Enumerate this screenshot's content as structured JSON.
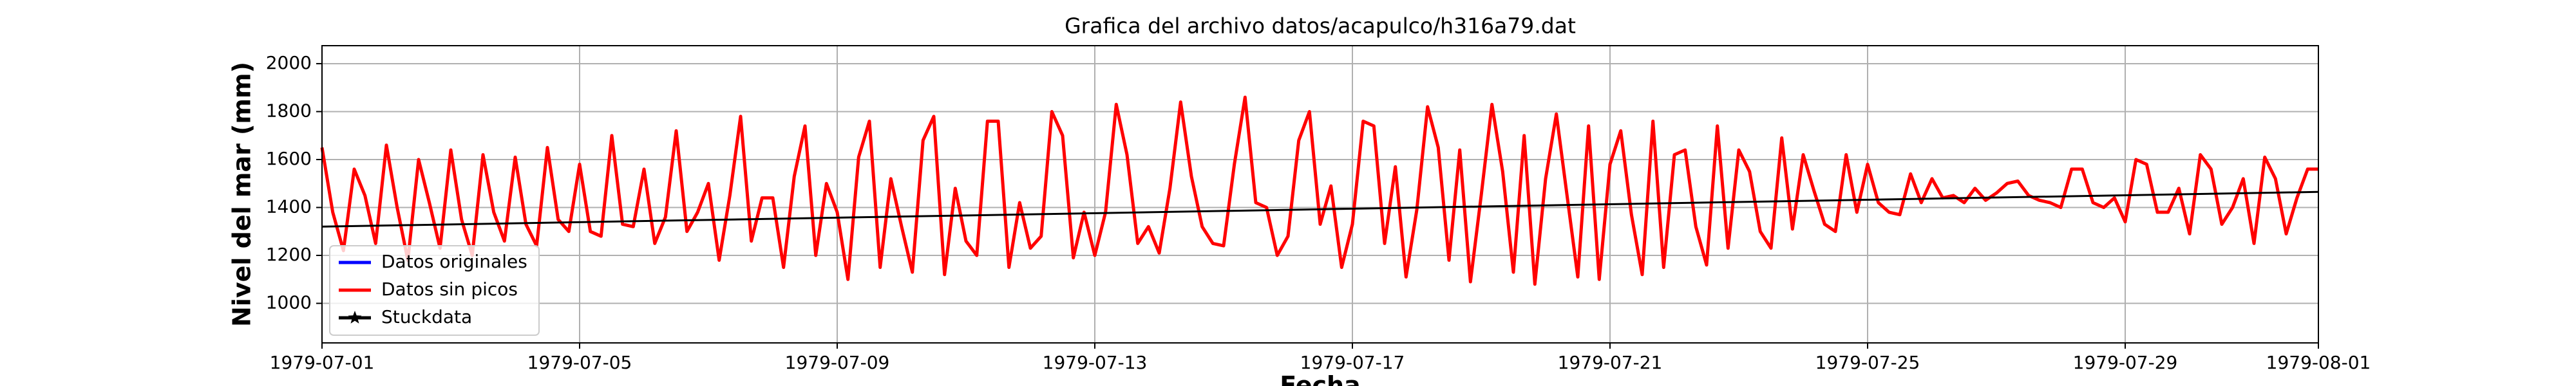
{
  "chart_data": {
    "type": "line",
    "title": "Grafica del archivo datos/acapulco/h316a79.dat",
    "xlabel": "Fecha",
    "ylabel": "Nivel del mar (mm)",
    "xlim": [
      "1979-07-01",
      "1979-08-01"
    ],
    "xticks": [
      "1979-07-01",
      "1979-07-05",
      "1979-07-09",
      "1979-07-13",
      "1979-07-17",
      "1979-07-21",
      "1979-07-25",
      "1979-07-29",
      "1979-08-01"
    ],
    "ylim": [
      835,
      2075
    ],
    "yticks": [
      1000,
      1200,
      1400,
      1600,
      1800,
      2000
    ],
    "grid": true,
    "legend": "lower left",
    "x": [
      "1979-07-01 00:00",
      "1979-07-01 04:00",
      "1979-07-01 08:00",
      "1979-07-01 12:00",
      "1979-07-01 16:00",
      "1979-07-01 20:00",
      "1979-07-02 00:00",
      "1979-07-02 04:00",
      "1979-07-02 08:00",
      "1979-07-02 12:00",
      "1979-07-02 16:00",
      "1979-07-02 20:00",
      "1979-07-03 00:00",
      "1979-07-03 04:00",
      "1979-07-03 08:00",
      "1979-07-03 12:00",
      "1979-07-03 16:00",
      "1979-07-03 20:00",
      "1979-07-04 00:00",
      "1979-07-04 04:00",
      "1979-07-04 08:00",
      "1979-07-04 12:00",
      "1979-07-04 16:00",
      "1979-07-04 20:00",
      "1979-07-05 00:00",
      "1979-07-05 04:00",
      "1979-07-05 08:00",
      "1979-07-05 12:00",
      "1979-07-05 16:00",
      "1979-07-05 20:00",
      "1979-07-06 00:00",
      "1979-07-06 04:00",
      "1979-07-06 08:00",
      "1979-07-06 12:00",
      "1979-07-06 16:00",
      "1979-07-06 20:00",
      "1979-07-07 00:00",
      "1979-07-07 04:00",
      "1979-07-07 08:00",
      "1979-07-07 12:00",
      "1979-07-07 16:00",
      "1979-07-07 20:00",
      "1979-07-08 00:00",
      "1979-07-08 04:00",
      "1979-07-08 08:00",
      "1979-07-08 12:00",
      "1979-07-08 16:00",
      "1979-07-08 20:00",
      "1979-07-09 00:00",
      "1979-07-09 04:00",
      "1979-07-09 08:00",
      "1979-07-09 12:00",
      "1979-07-09 16:00",
      "1979-07-09 20:00",
      "1979-07-10 00:00",
      "1979-07-10 04:00",
      "1979-07-10 08:00",
      "1979-07-10 12:00",
      "1979-07-10 16:00",
      "1979-07-10 20:00",
      "1979-07-11 00:00",
      "1979-07-11 04:00",
      "1979-07-11 08:00",
      "1979-07-11 12:00",
      "1979-07-11 16:00",
      "1979-07-11 20:00",
      "1979-07-12 00:00",
      "1979-07-12 04:00",
      "1979-07-12 08:00",
      "1979-07-12 12:00",
      "1979-07-12 16:00",
      "1979-07-12 20:00",
      "1979-07-13 00:00",
      "1979-07-13 04:00",
      "1979-07-13 08:00",
      "1979-07-13 12:00",
      "1979-07-13 16:00",
      "1979-07-13 20:00",
      "1979-07-14 00:00",
      "1979-07-14 04:00",
      "1979-07-14 08:00",
      "1979-07-14 12:00",
      "1979-07-14 16:00",
      "1979-07-14 20:00",
      "1979-07-15 00:00",
      "1979-07-15 04:00",
      "1979-07-15 08:00",
      "1979-07-15 12:00",
      "1979-07-15 16:00",
      "1979-07-15 20:00",
      "1979-07-16 00:00",
      "1979-07-16 04:00",
      "1979-07-16 08:00",
      "1979-07-16 12:00",
      "1979-07-16 16:00",
      "1979-07-16 20:00",
      "1979-07-17 00:00",
      "1979-07-17 04:00",
      "1979-07-17 08:00",
      "1979-07-17 12:00",
      "1979-07-17 16:00",
      "1979-07-17 20:00",
      "1979-07-18 00:00",
      "1979-07-18 04:00",
      "1979-07-18 08:00",
      "1979-07-18 12:00",
      "1979-07-18 16:00",
      "1979-07-18 20:00",
      "1979-07-19 00:00",
      "1979-07-19 04:00",
      "1979-07-19 08:00",
      "1979-07-19 12:00",
      "1979-07-19 16:00",
      "1979-07-19 20:00",
      "1979-07-20 00:00",
      "1979-07-20 04:00",
      "1979-07-20 08:00",
      "1979-07-20 12:00",
      "1979-07-20 16:00",
      "1979-07-20 20:00",
      "1979-07-21 00:00",
      "1979-07-21 04:00",
      "1979-07-21 08:00",
      "1979-07-21 12:00",
      "1979-07-21 16:00",
      "1979-07-21 20:00",
      "1979-07-22 00:00",
      "1979-07-22 04:00",
      "1979-07-22 08:00",
      "1979-07-22 12:00",
      "1979-07-22 16:00",
      "1979-07-22 20:00",
      "1979-07-23 00:00",
      "1979-07-23 04:00",
      "1979-07-23 08:00",
      "1979-07-23 12:00",
      "1979-07-23 16:00",
      "1979-07-23 20:00",
      "1979-07-24 00:00",
      "1979-07-24 04:00",
      "1979-07-24 08:00",
      "1979-07-24 12:00",
      "1979-07-24 16:00",
      "1979-07-24 20:00",
      "1979-07-25 00:00",
      "1979-07-25 04:00",
      "1979-07-25 08:00",
      "1979-07-25 12:00",
      "1979-07-25 16:00",
      "1979-07-25 20:00",
      "1979-07-26 00:00",
      "1979-07-26 04:00",
      "1979-07-26 08:00",
      "1979-07-26 12:00",
      "1979-07-26 16:00",
      "1979-07-26 20:00",
      "1979-07-27 00:00",
      "1979-07-27 04:00",
      "1979-07-27 08:00",
      "1979-07-27 12:00",
      "1979-07-27 16:00",
      "1979-07-27 20:00",
      "1979-07-28 00:00",
      "1979-07-28 04:00",
      "1979-07-28 08:00",
      "1979-07-28 12:00",
      "1979-07-28 16:00",
      "1979-07-28 20:00",
      "1979-07-29 00:00",
      "1979-07-29 04:00",
      "1979-07-29 08:00",
      "1979-07-29 12:00",
      "1979-07-29 16:00",
      "1979-07-29 20:00",
      "1979-07-30 00:00",
      "1979-07-30 04:00",
      "1979-07-30 08:00",
      "1979-07-30 12:00",
      "1979-07-30 16:00",
      "1979-07-30 20:00",
      "1979-07-31 00:00",
      "1979-07-31 04:00",
      "1979-07-31 08:00",
      "1979-07-31 12:00",
      "1979-07-31 16:00",
      "1979-07-31 20:00",
      "1979-08-01 00:00"
    ],
    "series": [
      {
        "name": "Datos originales",
        "color": "#0000ff",
        "marker": "none",
        "values": [
          1650,
          1380,
          1220,
          1560,
          1450,
          1250,
          1660,
          1400,
          1180,
          1600,
          1420,
          1230,
          1640,
          1350,
          1200,
          1620,
          1380,
          1260,
          1610,
          1330,
          1240,
          1650,
          1350,
          1300,
          1580,
          1300,
          1280,
          1700,
          1330,
          1320,
          1560,
          1250,
          1360,
          1720,
          1300,
          1380,
          1500,
          1180,
          1450,
          1780,
          1260,
          1440,
          1440,
          1150,
          1530,
          1740,
          1200,
          1500,
          1380,
          1100,
          1610,
          1760,
          1150,
          1520,
          1320,
          1130,
          1680,
          1780,
          1120,
          1480,
          1260,
          1200,
          1760,
          1760,
          1150,
          1420,
          1230,
          1280,
          1800,
          1700,
          1190,
          1380,
          1200,
          1380,
          1830,
          1620,
          1250,
          1320,
          1210,
          1480,
          1840,
          1530,
          1320,
          1250,
          1240,
          1580,
          1860,
          1420,
          1400,
          1200,
          1280,
          1680,
          1800,
          1330,
          1490,
          1150,
          1330,
          1760,
          1740,
          1250,
          1570,
          1110,
          1390,
          1820,
          1650,
          1180,
          1640,
          1090,
          1450,
          1830,
          1550,
          1130,
          1700,
          1080,
          1520,
          1790,
          1450,
          1110,
          1740,
          1100,
          1580,
          1720,
          1370,
          1120,
          1760,
          1150,
          1620,
          1640,
          1320,
          1160,
          1740,
          1230,
          1640,
          1550,
          1300,
          1230,
          1690,
          1310,
          1620,
          1470,
          1330,
          1300,
          1620,
          1380,
          1580,
          1420,
          1380,
          1370,
          1540,
          1420,
          1520,
          1440,
          1450,
          1420,
          1480,
          1430,
          1460,
          1500,
          1510,
          1450,
          1430,
          1420,
          1400,
          1560,
          1560,
          1420,
          1400,
          1440,
          1340,
          1600,
          1580,
          1380,
          1380,
          1480,
          1290,
          1620,
          1560,
          1330,
          1400,
          1520,
          1250,
          1610,
          1520,
          1290,
          1440,
          1560,
          1560
        ]
      },
      {
        "name": "Datos sin picos",
        "color": "#ff0000",
        "marker": "none",
        "values": [
          1650,
          1380,
          1220,
          1560,
          1450,
          1250,
          1660,
          1400,
          1180,
          1600,
          1420,
          1230,
          1640,
          1350,
          1200,
          1620,
          1380,
          1260,
          1610,
          1330,
          1240,
          1650,
          1350,
          1300,
          1580,
          1300,
          1280,
          1700,
          1330,
          1320,
          1560,
          1250,
          1360,
          1720,
          1300,
          1380,
          1500,
          1180,
          1450,
          1780,
          1260,
          1440,
          1440,
          1150,
          1530,
          1740,
          1200,
          1500,
          1380,
          1100,
          1610,
          1760,
          1150,
          1520,
          1320,
          1130,
          1680,
          1780,
          1120,
          1480,
          1260,
          1200,
          1760,
          1760,
          1150,
          1420,
          1230,
          1280,
          1800,
          1700,
          1190,
          1380,
          1200,
          1380,
          1830,
          1620,
          1250,
          1320,
          1210,
          1480,
          1840,
          1530,
          1320,
          1250,
          1240,
          1580,
          1860,
          1420,
          1400,
          1200,
          1280,
          1680,
          1800,
          1330,
          1490,
          1150,
          1330,
          1760,
          1740,
          1250,
          1570,
          1110,
          1390,
          1820,
          1650,
          1180,
          1640,
          1090,
          1450,
          1830,
          1550,
          1130,
          1700,
          1080,
          1520,
          1790,
          1450,
          1110,
          1740,
          1100,
          1580,
          1720,
          1370,
          1120,
          1760,
          1150,
          1620,
          1640,
          1320,
          1160,
          1740,
          1230,
          1640,
          1550,
          1300,
          1230,
          1690,
          1310,
          1620,
          1470,
          1330,
          1300,
          1620,
          1380,
          1580,
          1420,
          1380,
          1370,
          1540,
          1420,
          1520,
          1440,
          1450,
          1420,
          1480,
          1430,
          1460,
          1500,
          1510,
          1450,
          1430,
          1420,
          1400,
          1560,
          1560,
          1420,
          1400,
          1440,
          1340,
          1600,
          1580,
          1380,
          1380,
          1480,
          1290,
          1620,
          1560,
          1330,
          1400,
          1520,
          1250,
          1610,
          1520,
          1290,
          1440,
          1560,
          1560
        ]
      },
      {
        "name": "Stuckdata",
        "color": "#000000",
        "marker": "star",
        "x": [
          "1979-07-01 00:00",
          "1979-08-01 00:00"
        ],
        "values": [
          1320,
          1465
        ]
      }
    ]
  }
}
